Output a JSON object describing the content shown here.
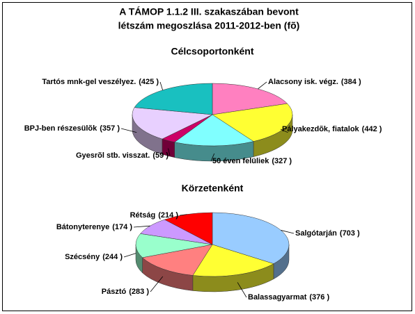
{
  "title": [
    "A TÁMOP 1.1.2 III. szakaszában bevont",
    "létszám megoszlása 2011-2012-ben (fõ)"
  ],
  "chart_data": [
    {
      "type": "pie3d",
      "title": "Célcsoportonként",
      "categories": [
        "Alacsony isk. végz.",
        "Pályakezdõk, fiatalok",
        "50 éven felüliek",
        "Gyesrõl stb. visszat.",
        "BPJ-ben részesülõk",
        "Tartós mnk-gel veszélyez."
      ],
      "values": [
        384,
        442,
        327,
        59,
        357,
        425
      ],
      "value_labels": [
        "(384 )",
        "(442 )",
        "(327 )",
        "(59 )",
        "(357 )",
        "(425 )"
      ],
      "colors": [
        "#ff80c0",
        "#ffff33",
        "#80ffff",
        "#cc0066",
        "#e8d0ff",
        "#19c0c0"
      ]
    },
    {
      "type": "pie3d",
      "title": "Körzetenként",
      "categories": [
        "Salgótarján",
        "Balassagyarmat",
        "Pásztó",
        "Szécsény",
        "Bátonyterenye",
        "Rétság"
      ],
      "values": [
        703,
        376,
        283,
        244,
        174,
        214
      ],
      "value_labels": [
        "(703 )",
        "(376 )",
        "(283 )",
        "(244 )",
        "(174 )",
        "(214 )"
      ],
      "colors": [
        "#99ccff",
        "#ffff33",
        "#ff8080",
        "#99ffcc",
        "#cc99ff",
        "#ff0000"
      ]
    }
  ]
}
